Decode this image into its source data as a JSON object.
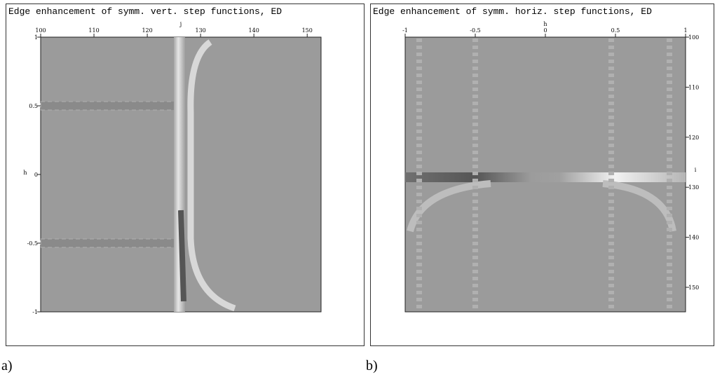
{
  "panels": [
    {
      "title": "Edge enhancement of symm. vert. step functions, ED",
      "caption": "a)",
      "x_axis": {
        "label": "j",
        "lim": [
          100,
          152.6
        ],
        "ticks": [
          100,
          110,
          120,
          130,
          140,
          150
        ]
      },
      "y_axis": {
        "label": "h",
        "side": "left",
        "lim": [
          1,
          -1
        ],
        "ticks": [
          1,
          0.5,
          0,
          -0.5,
          -1
        ]
      }
    },
    {
      "title": "Edge enhancement of symm. horiz. step functions, ED",
      "caption": "b)",
      "x_axis": {
        "label": "h",
        "lim": [
          -1,
          1
        ],
        "ticks": [
          -1,
          -0.5,
          0,
          0.5,
          1
        ]
      },
      "y_axis": {
        "label": "i",
        "side": "right",
        "lim": [
          100,
          154.9
        ],
        "ticks": [
          100,
          110,
          120,
          130,
          140,
          150
        ]
      }
    }
  ]
}
